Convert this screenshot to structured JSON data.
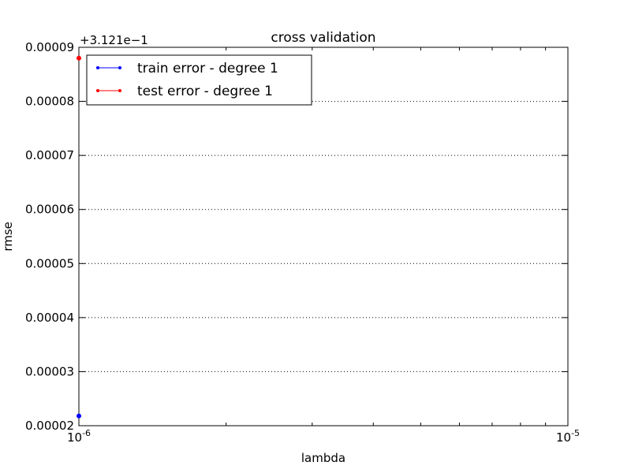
{
  "chart_data": {
    "type": "line",
    "title": "cross validation",
    "xlabel": "lambda",
    "ylabel": "rmse",
    "x_scale": "log",
    "xlim": [
      1e-06,
      1e-05
    ],
    "x_tick_labels": [
      {
        "base": "10",
        "exp": "-6",
        "value": 1e-06
      },
      {
        "base": "10",
        "exp": "-5",
        "value": 1e-05
      }
    ],
    "y_offset_label": "+3.121e−1",
    "ylim": [
      2e-05,
      9e-05
    ],
    "y_ticks": [
      2e-05,
      3e-05,
      4e-05,
      5e-05,
      6e-05,
      7e-05,
      8e-05,
      9e-05
    ],
    "y_tick_labels": [
      "0.00002",
      "0.00003",
      "0.00004",
      "0.00005",
      "0.00006",
      "0.00007",
      "0.00008",
      "0.00009"
    ],
    "grid": "horizontal dotted",
    "legend_position": "top-left",
    "series": [
      {
        "name": "train error - degree 1",
        "color": "#0000ff",
        "x": [
          1e-06
        ],
        "y": [
          2.18e-05
        ]
      },
      {
        "name": "test error - degree 1",
        "color": "#ff0000",
        "x": [
          1e-06
        ],
        "y": [
          8.8e-05
        ]
      }
    ]
  }
}
